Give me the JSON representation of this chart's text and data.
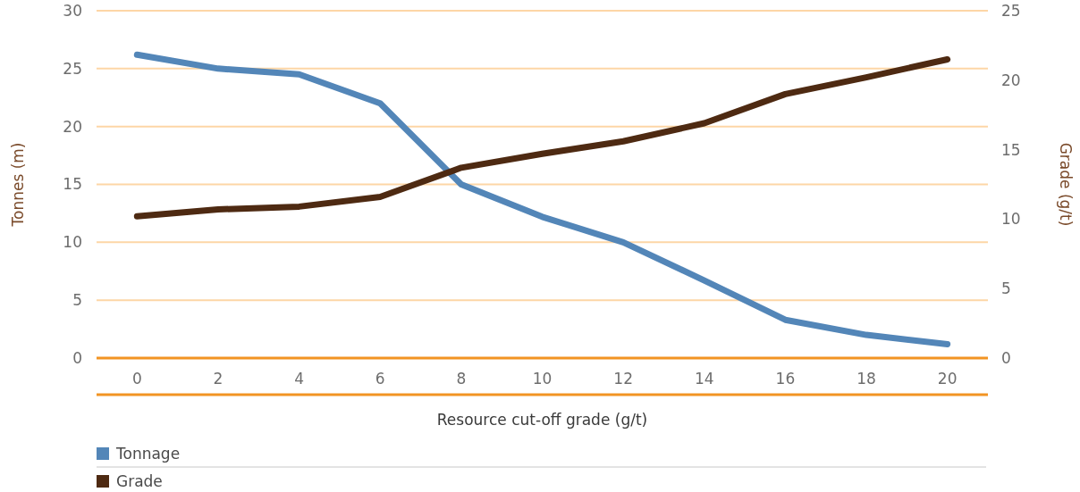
{
  "chart_data": {
    "type": "line",
    "xlabel": "Resource cut-off grade (g/t)",
    "ylabel": "Tonnes (m)",
    "y2label": "Grade (g/t)",
    "categories": [
      "0",
      "2",
      "4",
      "6",
      "8",
      "10",
      "12",
      "14",
      "16",
      "18",
      "20"
    ],
    "series": [
      {
        "name": "Tonnage",
        "color": "#5386b8",
        "values": [
          26.2,
          25.0,
          24.5,
          22.0,
          15.0,
          12.2,
          10.0,
          6.7,
          3.3,
          2.0,
          1.2
        ]
      },
      {
        "name": "Grade",
        "color": "#4e2a12",
        "axis": "y2",
        "values": [
          10.2,
          10.7,
          10.9,
          11.6,
          13.7,
          14.7,
          15.6,
          16.9,
          19.0,
          20.2,
          21.5
        ]
      }
    ],
    "ylim": [
      0,
      30
    ],
    "yticks": [
      0,
      5,
      10,
      15,
      20,
      25,
      30
    ],
    "y2lim": [
      0,
      25
    ],
    "y2ticks": [
      0,
      5,
      10,
      15,
      20,
      25
    ],
    "grid": "y",
    "legend": "bottom left",
    "marker": "none",
    "line_style": "solid"
  }
}
